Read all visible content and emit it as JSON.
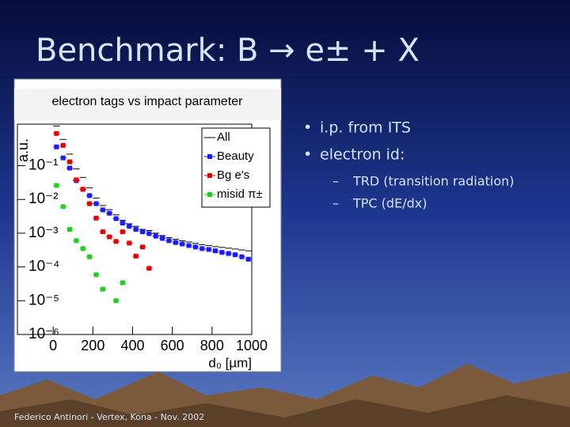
{
  "title": "Benchmark: B → e± + X",
  "bullets": [
    "i.p. from ITS",
    "electron id:"
  ],
  "sub_bullets": [
    "TRD (transition radiation)",
    "TPC (dE/dx)"
  ],
  "footer": "Federico Antinori - Vertex, Kona - Nov. 2002",
  "chart_data": {
    "type": "scatter",
    "title": "electron tags vs impact parameter",
    "ylabel": "a.u.",
    "xlabel": "d₀ [µm]",
    "log_y": true,
    "xlim": [
      -180,
      1000
    ],
    "ylim": [
      1e-06,
      1.7
    ],
    "xticks": [
      0,
      200,
      400,
      600,
      800,
      1000
    ],
    "yticks": [
      {
        "value": 0.1,
        "label": "10⁻¹"
      },
      {
        "value": 0.01,
        "label": "10⁻²"
      },
      {
        "value": 0.001,
        "label": "10⁻³"
      },
      {
        "value": 0.0001,
        "label": "10⁻⁴"
      },
      {
        "value": 1e-05,
        "label": "10⁻⁵"
      },
      {
        "value": 1e-06,
        "label": "10⁻⁶"
      }
    ],
    "x": [
      16.7,
      50,
      83.3,
      116.7,
      150,
      183.3,
      216.7,
      250,
      283.3,
      316.7,
      350,
      383.3,
      416.7,
      450,
      483.3,
      516.7,
      550,
      583.3,
      616.7,
      650,
      683.3,
      716.7,
      750,
      783.3,
      816.7,
      850,
      883.3,
      916.7,
      950,
      983.3
    ],
    "legend": "upper right",
    "series": [
      {
        "name": "All",
        "color": "#000000",
        "style": "step",
        "values": [
          1.5,
          0.6,
          0.22,
          0.08,
          0.045,
          0.022,
          0.011,
          0.0066,
          0.005,
          0.0035,
          0.0024,
          0.0019,
          0.0016,
          0.0013,
          0.0012,
          0.001,
          0.00085,
          0.00074,
          0.00066,
          0.0006,
          0.00055,
          0.0005,
          0.00046,
          0.00043,
          0.0004,
          0.00038,
          0.00036,
          0.00034,
          0.00032,
          0.0003
        ]
      },
      {
        "name": "Beauty",
        "color": "#1a1aff",
        "style": "marker",
        "values": [
          0.36,
          0.17,
          0.085,
          0.036,
          0.02,
          0.013,
          0.0075,
          0.0049,
          0.0039,
          0.0027,
          0.002,
          0.0016,
          0.0013,
          0.0011,
          0.00097,
          0.00082,
          0.0007,
          0.0006,
          0.00053,
          0.00048,
          0.00043,
          0.00039,
          0.00035,
          0.00033,
          0.0003,
          0.00027,
          0.00025,
          0.00023,
          0.0002,
          0.00017
        ]
      },
      {
        "name": "Bg e's",
        "color": "#e60000",
        "style": "marker",
        "values": [
          0.9,
          0.4,
          0.13,
          0.038,
          0.02,
          0.0075,
          0.0028,
          0.0011,
          0.00078,
          0.00057,
          0.0011,
          0.00051,
          0.00021,
          0.00039,
          9.1e-05,
          null,
          null,
          null,
          null,
          null,
          null,
          null,
          null,
          null,
          null,
          null,
          null,
          null,
          null,
          null
        ]
      },
      {
        "name": "misid π±",
        "color": "#22cc22",
        "style": "marker",
        "values": [
          0.026,
          0.0061,
          0.0013,
          0.0006,
          0.00035,
          0.0002,
          5.9e-05,
          2.2e-05,
          null,
          1e-05,
          3.4e-05,
          null,
          null,
          null,
          null,
          null,
          null,
          null,
          null,
          null,
          null,
          null,
          null,
          null,
          null,
          null,
          null,
          null,
          null,
          null
        ]
      }
    ]
  }
}
